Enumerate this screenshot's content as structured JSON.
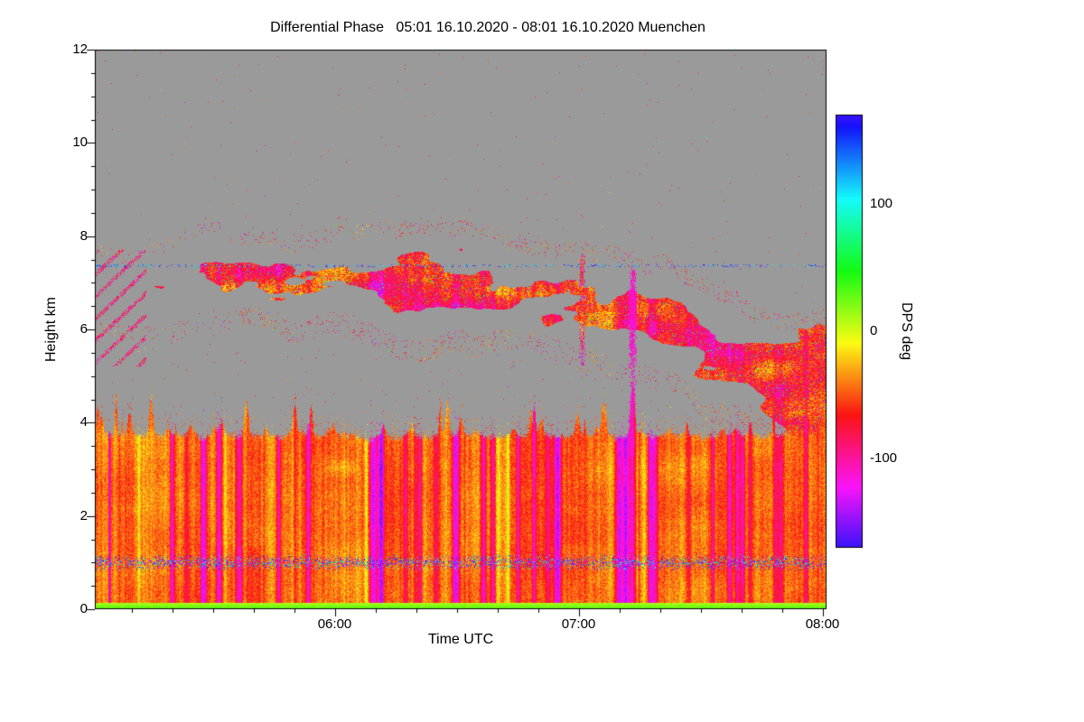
{
  "chart_data": {
    "type": "heatmap",
    "title": "Differential Phase   05:01 16.10.2020 - 08:01 16.10.2020 Muenchen",
    "xlabel": "Time UTC",
    "ylabel": "Height km",
    "time_start": "05:01",
    "time_end": "08:01",
    "date": "16.10.2020",
    "station": "Muenchen",
    "x_range_minutes": [
      301,
      481
    ],
    "ylim": [
      0,
      12
    ],
    "yticks": [
      0,
      2,
      4,
      6,
      8,
      10,
      12
    ],
    "xticks": [
      {
        "label": "06:00",
        "minute": 360
      },
      {
        "label": "07:00",
        "minute": 420
      },
      {
        "label": "08:00",
        "minute": 480
      }
    ],
    "colorbar": {
      "label": "DPS deg",
      "ticks": [
        100,
        0,
        -100
      ],
      "vmin": -170,
      "vmax": 170
    },
    "no_data_color": "#9a9a9a",
    "legend_position": "right",
    "grid": false,
    "regions": [
      {
        "name": "boundary-layer",
        "height_km": [
          0,
          3.7
        ],
        "time": "full range",
        "dominant_dps_deg": [
          -90,
          -20
        ],
        "appearance": "solid orange/red noisy layer with vertical red-magenta interference streaks"
      },
      {
        "name": "surface-green-band",
        "height_km": [
          0,
          0.15
        ],
        "dominant_dps_deg": [
          5,
          40
        ],
        "appearance": "thin yellow-green band along the ground"
      },
      {
        "name": "speckle-line",
        "height_km": [
          0.85,
          1.15
        ],
        "appearance": "horizontal line of multicolor (green/cyan/blue/purple) speckles inside the boundary layer"
      },
      {
        "name": "elevated-cloud-layer",
        "height_km": [
          5.5,
          8.1
        ],
        "time": "05:10-08:01",
        "dominant_dps_deg": [
          -140,
          -20
        ],
        "appearance": "patchy orange layer with magenta speckled edges, descending to ~4-6 km after 07:30 and merging with the boundary layer"
      },
      {
        "name": "dotted-artifact-line",
        "height_km": [
          7.35,
          7.4
        ],
        "appearance": "sparse blue/violet dotted line across the full time range"
      },
      {
        "name": "no-data",
        "appearance": "uniform gray fill elsewhere"
      }
    ]
  }
}
